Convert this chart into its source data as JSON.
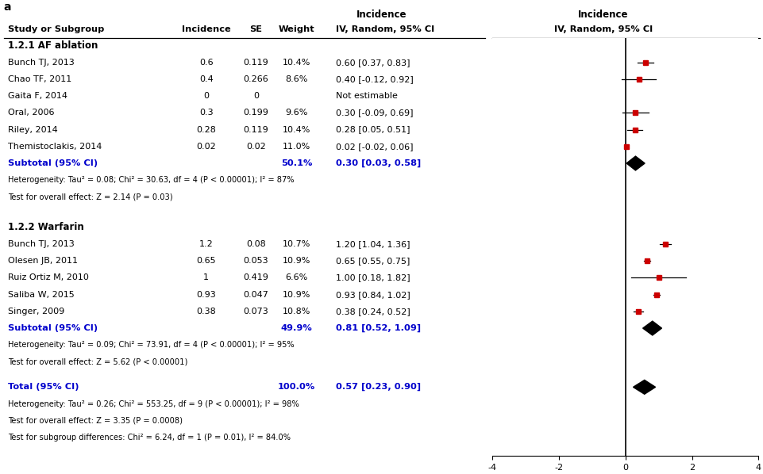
{
  "studies_s1": [
    {
      "name": "Bunch TJ, 2013",
      "inc": "0.6",
      "se": "0.119",
      "weight": "10.4%",
      "ci_text": "0.60 [0.37, 0.83]",
      "mean": 0.6,
      "lo": 0.37,
      "hi": 0.83
    },
    {
      "name": "Chao TF, 2011",
      "inc": "0.4",
      "se": "0.266",
      "weight": "8.6%",
      "ci_text": "0.40 [-0.12, 0.92]",
      "mean": 0.4,
      "lo": -0.12,
      "hi": 0.92
    },
    {
      "name": "Gaita F, 2014",
      "inc": "0",
      "se": "0",
      "weight": "",
      "ci_text": "Not estimable",
      "mean": null,
      "lo": null,
      "hi": null
    },
    {
      "name": "Oral, 2006",
      "inc": "0.3",
      "se": "0.199",
      "weight": "9.6%",
      "ci_text": "0.30 [-0.09, 0.69]",
      "mean": 0.3,
      "lo": -0.09,
      "hi": 0.69
    },
    {
      "name": "Riley, 2014",
      "inc": "0.28",
      "se": "0.119",
      "weight": "10.4%",
      "ci_text": "0.28 [0.05, 0.51]",
      "mean": 0.28,
      "lo": 0.05,
      "hi": 0.51
    },
    {
      "name": "Themistoclakis, 2014",
      "inc": "0.02",
      "se": "0.02",
      "weight": "11.0%",
      "ci_text": "0.02 [-0.02, 0.06]",
      "mean": 0.02,
      "lo": -0.02,
      "hi": 0.06
    }
  ],
  "subtotal_s1": {
    "weight": "50.1%",
    "ci_text": "0.30 [0.03, 0.58]",
    "mean": 0.3,
    "lo": 0.03,
    "hi": 0.58
  },
  "het_s1": "Heterogeneity: Tau² = 0.08; Chi² = 30.63, df = 4 (P < 0.00001); I² = 87%",
  "test_s1": "Test for overall effect: Z = 2.14 (P = 0.03)",
  "studies_s2": [
    {
      "name": "Bunch TJ, 2013",
      "inc": "1.2",
      "se": "0.08",
      "weight": "10.7%",
      "ci_text": "1.20 [1.04, 1.36]",
      "mean": 1.2,
      "lo": 1.04,
      "hi": 1.36
    },
    {
      "name": "Olesen JB, 2011",
      "inc": "0.65",
      "se": "0.053",
      "weight": "10.9%",
      "ci_text": "0.65 [0.55, 0.75]",
      "mean": 0.65,
      "lo": 0.55,
      "hi": 0.75
    },
    {
      "name": "Ruiz Ortiz M, 2010",
      "inc": "1",
      "se": "0.419",
      "weight": "6.6%",
      "ci_text": "1.00 [0.18, 1.82]",
      "mean": 1.0,
      "lo": 0.18,
      "hi": 1.82
    },
    {
      "name": "Saliba W, 2015",
      "inc": "0.93",
      "se": "0.047",
      "weight": "10.9%",
      "ci_text": "0.93 [0.84, 1.02]",
      "mean": 0.93,
      "lo": 0.84,
      "hi": 1.02
    },
    {
      "name": "Singer, 2009",
      "inc": "0.38",
      "se": "0.073",
      "weight": "10.8%",
      "ci_text": "0.38 [0.24, 0.52]",
      "mean": 0.38,
      "lo": 0.24,
      "hi": 0.52
    }
  ],
  "subtotal_s2": {
    "weight": "49.9%",
    "ci_text": "0.81 [0.52, 1.09]",
    "mean": 0.81,
    "lo": 0.52,
    "hi": 1.09
  },
  "het_s2": "Heterogeneity: Tau² = 0.09; Chi² = 73.91, df = 4 (P < 0.00001); I² = 95%",
  "test_s2": "Test for overall effect: Z = 5.62 (P < 0.00001)",
  "total": {
    "weight": "100.0%",
    "ci_text": "0.57 [0.23, 0.90]",
    "mean": 0.57,
    "lo": 0.23,
    "hi": 0.9
  },
  "het_total": "Heterogeneity: Tau² = 0.26; Chi² = 553.25, df = 9 (P < 0.00001); I² = 98%",
  "test_total": "Test for overall effect: Z = 3.35 (P = 0.0008)",
  "test_subgrp": "Test for subgroup differences: Chi² = 6.24, df = 1 (P = 0.01), I² = 84.0%",
  "xlim": [
    -4,
    4
  ],
  "xticks": [
    -4,
    -2,
    0,
    2,
    4
  ],
  "xlabel": "INCIDENCE"
}
